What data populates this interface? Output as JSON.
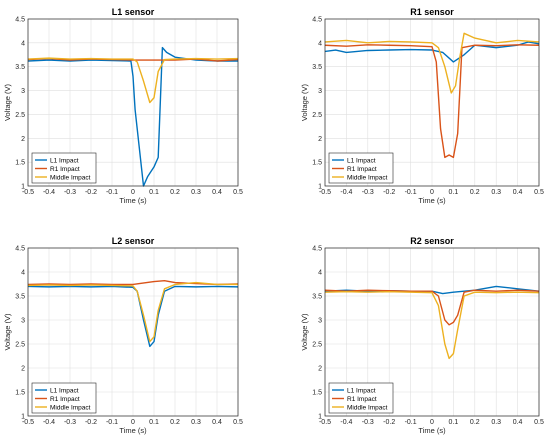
{
  "chart_data": [
    {
      "type": "line",
      "title": "L1 sensor",
      "xlabel": "Time (s)",
      "ylabel": "Voltage (V)",
      "xlim": [
        -0.5,
        0.5
      ],
      "ylim": [
        1,
        4.5
      ],
      "xticks": [
        "-0.5",
        "-0.4",
        "-0.3",
        "-0.2",
        "-0.1",
        "0",
        "0.1",
        "0.2",
        "0.3",
        "0.4",
        "0.5"
      ],
      "yticks": [
        "1",
        "1.5",
        "2",
        "2.5",
        "3",
        "3.5",
        "4",
        "4.5"
      ],
      "grid": true,
      "legend": "bottom-left",
      "series": [
        {
          "name": "L1 Impact",
          "color": "#0072BD",
          "x": [
            -0.5,
            -0.4,
            -0.3,
            -0.2,
            -0.1,
            -0.01,
            0.0,
            0.01,
            0.03,
            0.05,
            0.07,
            0.1,
            0.12,
            0.14,
            0.16,
            0.2,
            0.3,
            0.4,
            0.5
          ],
          "y": [
            3.62,
            3.64,
            3.62,
            3.64,
            3.63,
            3.62,
            3.3,
            2.6,
            1.8,
            1.0,
            1.2,
            1.4,
            1.6,
            3.9,
            3.8,
            3.7,
            3.64,
            3.62,
            3.62
          ]
        },
        {
          "name": "R1 Impact",
          "color": "#D95319",
          "x": [
            -0.5,
            -0.4,
            -0.3,
            -0.2,
            -0.1,
            0.0,
            0.1,
            0.2,
            0.3,
            0.4,
            0.5
          ],
          "y": [
            3.65,
            3.67,
            3.64,
            3.66,
            3.65,
            3.64,
            3.64,
            3.64,
            3.66,
            3.62,
            3.65
          ]
        },
        {
          "name": "Middle Impact",
          "color": "#EDB120",
          "x": [
            -0.5,
            -0.4,
            -0.3,
            -0.2,
            -0.1,
            0.0,
            0.02,
            0.05,
            0.08,
            0.1,
            0.12,
            0.15,
            0.2,
            0.3,
            0.4,
            0.5
          ],
          "y": [
            3.66,
            3.68,
            3.66,
            3.67,
            3.66,
            3.66,
            3.6,
            3.2,
            2.75,
            2.85,
            3.4,
            3.65,
            3.66,
            3.67,
            3.66,
            3.67
          ]
        }
      ]
    },
    {
      "type": "line",
      "title": "R1 sensor",
      "xlabel": "Time (s)",
      "ylabel": "Voltage (V)",
      "xlim": [
        -0.5,
        0.5
      ],
      "ylim": [
        1,
        4.5
      ],
      "xticks": [
        "-0.5",
        "-0.4",
        "-0.3",
        "-0.2",
        "-0.1",
        "0",
        "0.1",
        "0.2",
        "0.3",
        "0.4",
        "0.5"
      ],
      "yticks": [
        "1",
        "1.5",
        "2",
        "2.5",
        "3",
        "3.5",
        "4",
        "4.5"
      ],
      "grid": true,
      "legend": "bottom-left",
      "series": [
        {
          "name": "L1 Impact",
          "color": "#0072BD",
          "x": [
            -0.5,
            -0.45,
            -0.4,
            -0.3,
            -0.2,
            -0.1,
            0.0,
            0.05,
            0.1,
            0.15,
            0.2,
            0.3,
            0.4,
            0.45,
            0.5
          ],
          "y": [
            3.82,
            3.85,
            3.8,
            3.84,
            3.85,
            3.86,
            3.85,
            3.8,
            3.6,
            3.75,
            3.95,
            3.9,
            3.95,
            4.02,
            3.98
          ]
        },
        {
          "name": "R1 Impact",
          "color": "#D95319",
          "x": [
            -0.5,
            -0.4,
            -0.3,
            -0.2,
            -0.1,
            0.0,
            0.02,
            0.04,
            0.06,
            0.08,
            0.1,
            0.12,
            0.14,
            0.2,
            0.3,
            0.4,
            0.5
          ],
          "y": [
            3.95,
            3.93,
            3.96,
            3.95,
            3.94,
            3.92,
            3.6,
            2.2,
            1.6,
            1.65,
            1.6,
            2.1,
            3.9,
            3.95,
            3.94,
            3.96,
            3.95
          ]
        },
        {
          "name": "Middle Impact",
          "color": "#EDB120",
          "x": [
            -0.5,
            -0.4,
            -0.3,
            -0.2,
            -0.1,
            0.0,
            0.03,
            0.06,
            0.09,
            0.11,
            0.13,
            0.15,
            0.2,
            0.3,
            0.4,
            0.5
          ],
          "y": [
            4.02,
            4.05,
            4.0,
            4.03,
            4.02,
            4.0,
            3.9,
            3.5,
            2.95,
            3.1,
            3.7,
            4.2,
            4.1,
            4.0,
            4.05,
            4.02
          ]
        }
      ]
    },
    {
      "type": "line",
      "title": "L2 sensor",
      "xlabel": "Time (s)",
      "ylabel": "Voltage (V)",
      "xlim": [
        -0.5,
        0.5
      ],
      "ylim": [
        1,
        4.5
      ],
      "xticks": [
        "-0.5",
        "-0.4",
        "-0.3",
        "-0.2",
        "-0.1",
        "0",
        "0.1",
        "0.2",
        "0.3",
        "0.4",
        "0.5"
      ],
      "yticks": [
        "1",
        "1.5",
        "2",
        "2.5",
        "3",
        "3.5",
        "4",
        "4.5"
      ],
      "grid": true,
      "legend": "bottom-left",
      "series": [
        {
          "name": "L1 Impact",
          "color": "#0072BD",
          "x": [
            -0.5,
            -0.4,
            -0.3,
            -0.2,
            -0.1,
            0.0,
            0.02,
            0.05,
            0.08,
            0.1,
            0.12,
            0.15,
            0.2,
            0.3,
            0.4,
            0.5
          ],
          "y": [
            3.7,
            3.69,
            3.7,
            3.69,
            3.7,
            3.68,
            3.6,
            3.0,
            2.45,
            2.55,
            3.1,
            3.6,
            3.7,
            3.69,
            3.7,
            3.69
          ]
        },
        {
          "name": "R1 Impact",
          "color": "#D95319",
          "x": [
            -0.5,
            -0.4,
            -0.3,
            -0.2,
            -0.1,
            0.0,
            0.1,
            0.15,
            0.2,
            0.3,
            0.4,
            0.5
          ],
          "y": [
            3.74,
            3.75,
            3.74,
            3.75,
            3.74,
            3.74,
            3.8,
            3.82,
            3.78,
            3.76,
            3.74,
            3.75
          ]
        },
        {
          "name": "Middle Impact",
          "color": "#EDB120",
          "x": [
            -0.5,
            -0.4,
            -0.3,
            -0.2,
            -0.1,
            0.0,
            0.02,
            0.05,
            0.08,
            0.1,
            0.12,
            0.15,
            0.2,
            0.3,
            0.4,
            0.5
          ],
          "y": [
            3.72,
            3.73,
            3.72,
            3.73,
            3.72,
            3.71,
            3.6,
            3.1,
            2.55,
            2.65,
            3.2,
            3.65,
            3.74,
            3.78,
            3.74,
            3.74
          ]
        }
      ]
    },
    {
      "type": "line",
      "title": "R2 sensor",
      "xlabel": "Time (s)",
      "ylabel": "Voltage (V)",
      "xlim": [
        -0.5,
        0.5
      ],
      "ylim": [
        1,
        4.5
      ],
      "xticks": [
        "-0.5",
        "-0.4",
        "-0.3",
        "-0.2",
        "-0.1",
        "0",
        "0.1",
        "0.2",
        "0.3",
        "0.4",
        "0.5"
      ],
      "yticks": [
        "1",
        "1.5",
        "2",
        "2.5",
        "3",
        "3.5",
        "4",
        "4.5"
      ],
      "grid": true,
      "legend": "bottom-left",
      "series": [
        {
          "name": "L1 Impact",
          "color": "#0072BD",
          "x": [
            -0.5,
            -0.4,
            -0.3,
            -0.2,
            -0.1,
            0.0,
            0.05,
            0.1,
            0.15,
            0.2,
            0.3,
            0.4,
            0.5
          ],
          "y": [
            3.6,
            3.62,
            3.6,
            3.61,
            3.6,
            3.6,
            3.55,
            3.58,
            3.6,
            3.62,
            3.7,
            3.65,
            3.6
          ]
        },
        {
          "name": "R1 Impact",
          "color": "#D95319",
          "x": [
            -0.5,
            -0.4,
            -0.3,
            -0.2,
            -0.1,
            0.0,
            0.03,
            0.06,
            0.08,
            0.1,
            0.12,
            0.15,
            0.2,
            0.3,
            0.4,
            0.5
          ],
          "y": [
            3.62,
            3.6,
            3.62,
            3.61,
            3.6,
            3.6,
            3.5,
            3.0,
            2.9,
            2.95,
            3.1,
            3.58,
            3.62,
            3.6,
            3.62,
            3.6
          ]
        },
        {
          "name": "Middle Impact",
          "color": "#EDB120",
          "x": [
            -0.5,
            -0.4,
            -0.3,
            -0.2,
            -0.1,
            0.0,
            0.03,
            0.06,
            0.08,
            0.1,
            0.12,
            0.15,
            0.2,
            0.3,
            0.4,
            0.5
          ],
          "y": [
            3.58,
            3.59,
            3.58,
            3.59,
            3.58,
            3.57,
            3.3,
            2.5,
            2.2,
            2.3,
            2.8,
            3.5,
            3.58,
            3.57,
            3.58,
            3.57
          ]
        }
      ]
    }
  ]
}
